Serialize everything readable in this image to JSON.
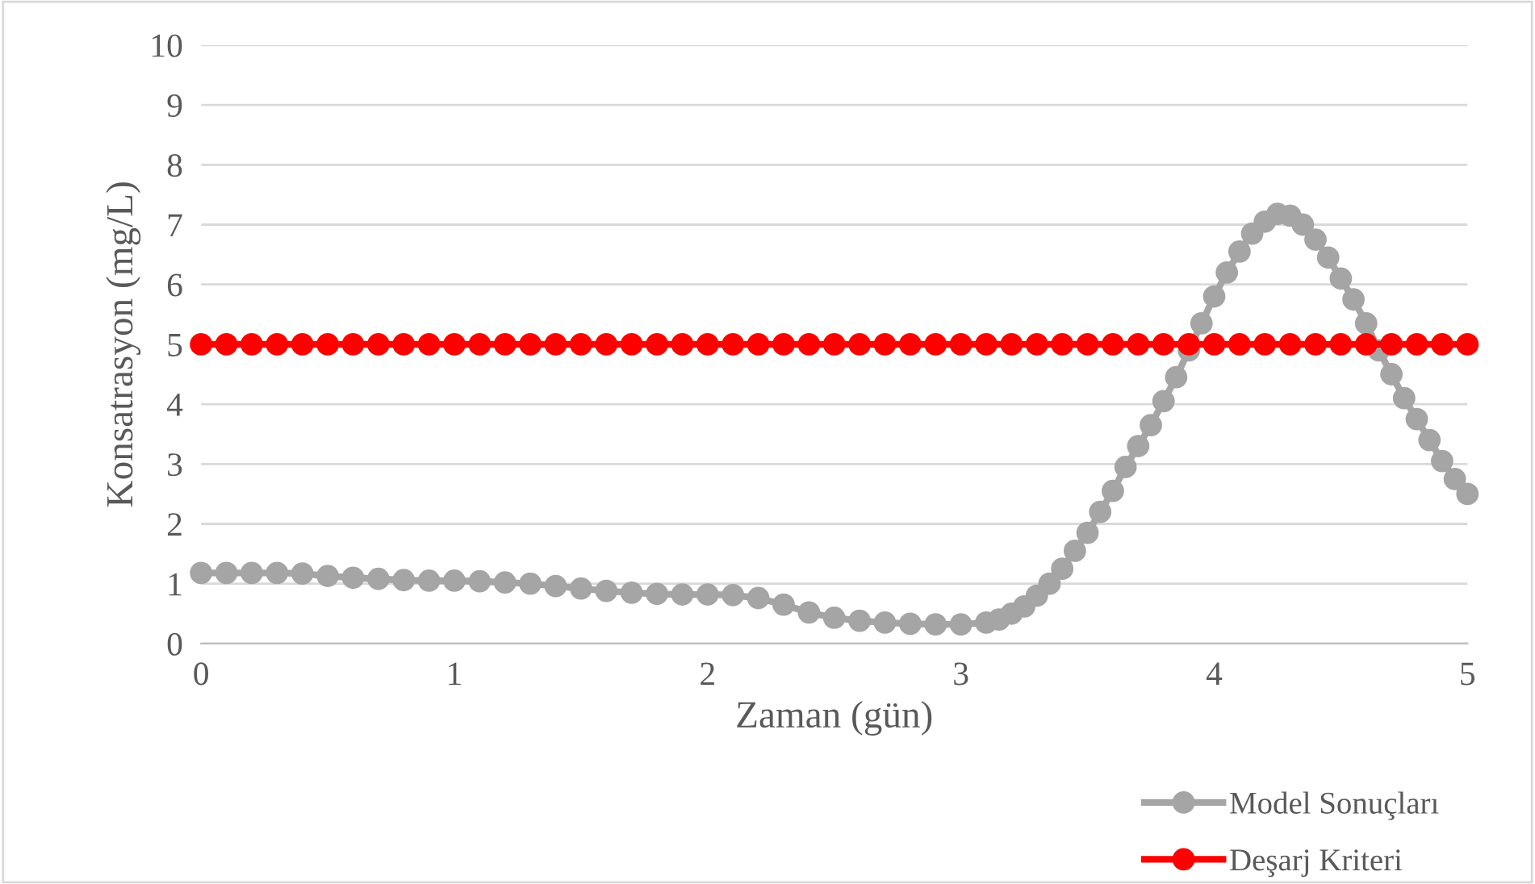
{
  "chart_data": {
    "type": "line",
    "xlabel": "Zaman (gün)",
    "ylabel": "Konsatrasyon (mg/L)",
    "xlim": [
      0,
      5
    ],
    "xticks": [
      0,
      1,
      2,
      3,
      4,
      5
    ],
    "ylim": [
      0,
      10
    ],
    "yticks": [
      0,
      1,
      2,
      3,
      4,
      5,
      6,
      7,
      8,
      9,
      10
    ],
    "grid": "y",
    "legend": "bottom right",
    "marker": "circle",
    "line_style": "solid",
    "series": [
      {
        "name": "Model Sonuçları",
        "color": "#a5a5a5",
        "x": [
          0,
          0.1,
          0.2,
          0.3,
          0.4,
          0.5,
          0.6,
          0.7,
          0.8,
          0.9,
          1.0,
          1.1,
          1.2,
          1.3,
          1.4,
          1.5,
          1.6,
          1.7,
          1.8,
          1.9,
          2.0,
          2.1,
          2.2,
          2.3,
          2.4,
          2.5,
          2.6,
          2.7,
          2.8,
          2.9,
          3.0,
          3.1,
          3.15,
          3.2,
          3.25,
          3.3,
          3.35,
          3.4,
          3.45,
          3.5,
          3.55,
          3.6,
          3.65,
          3.7,
          3.75,
          3.8,
          3.85,
          3.9,
          3.95,
          4.0,
          4.05,
          4.1,
          4.15,
          4.2,
          4.25,
          4.3,
          4.35,
          4.4,
          4.45,
          4.5,
          4.55,
          4.6,
          4.65,
          4.7,
          4.75,
          4.8,
          4.85,
          4.9,
          4.95,
          5.0
        ],
        "values": [
          1.18,
          1.18,
          1.18,
          1.18,
          1.17,
          1.13,
          1.1,
          1.08,
          1.06,
          1.05,
          1.05,
          1.04,
          1.02,
          1.0,
          0.96,
          0.92,
          0.88,
          0.85,
          0.83,
          0.82,
          0.82,
          0.81,
          0.76,
          0.65,
          0.52,
          0.43,
          0.38,
          0.35,
          0.33,
          0.32,
          0.32,
          0.35,
          0.4,
          0.5,
          0.62,
          0.8,
          1.0,
          1.25,
          1.55,
          1.85,
          2.2,
          2.55,
          2.95,
          3.3,
          3.65,
          4.05,
          4.45,
          4.9,
          5.35,
          5.8,
          6.2,
          6.55,
          6.85,
          7.05,
          7.18,
          7.15,
          7.0,
          6.75,
          6.45,
          6.1,
          5.75,
          5.35,
          4.9,
          4.5,
          4.1,
          3.75,
          3.4,
          3.05,
          2.75,
          2.5
        ]
      },
      {
        "name": "Deşarj Kriteri",
        "color": "#ff0000",
        "x": [
          0,
          0.1,
          0.2,
          0.3,
          0.4,
          0.5,
          0.6,
          0.7,
          0.8,
          0.9,
          1.0,
          1.1,
          1.2,
          1.3,
          1.4,
          1.5,
          1.6,
          1.7,
          1.8,
          1.9,
          2.0,
          2.1,
          2.2,
          2.3,
          2.4,
          2.5,
          2.6,
          2.7,
          2.8,
          2.9,
          3.0,
          3.1,
          3.2,
          3.3,
          3.4,
          3.5,
          3.6,
          3.7,
          3.8,
          3.9,
          4.0,
          4.1,
          4.2,
          4.3,
          4.4,
          4.5,
          4.6,
          4.7,
          4.8,
          4.9,
          5.0
        ],
        "values": [
          5,
          5,
          5,
          5,
          5,
          5,
          5,
          5,
          5,
          5,
          5,
          5,
          5,
          5,
          5,
          5,
          5,
          5,
          5,
          5,
          5,
          5,
          5,
          5,
          5,
          5,
          5,
          5,
          5,
          5,
          5,
          5,
          5,
          5,
          5,
          5,
          5,
          5,
          5,
          5,
          5,
          5,
          5,
          5,
          5,
          5,
          5,
          5,
          5,
          5,
          5
        ]
      }
    ]
  }
}
